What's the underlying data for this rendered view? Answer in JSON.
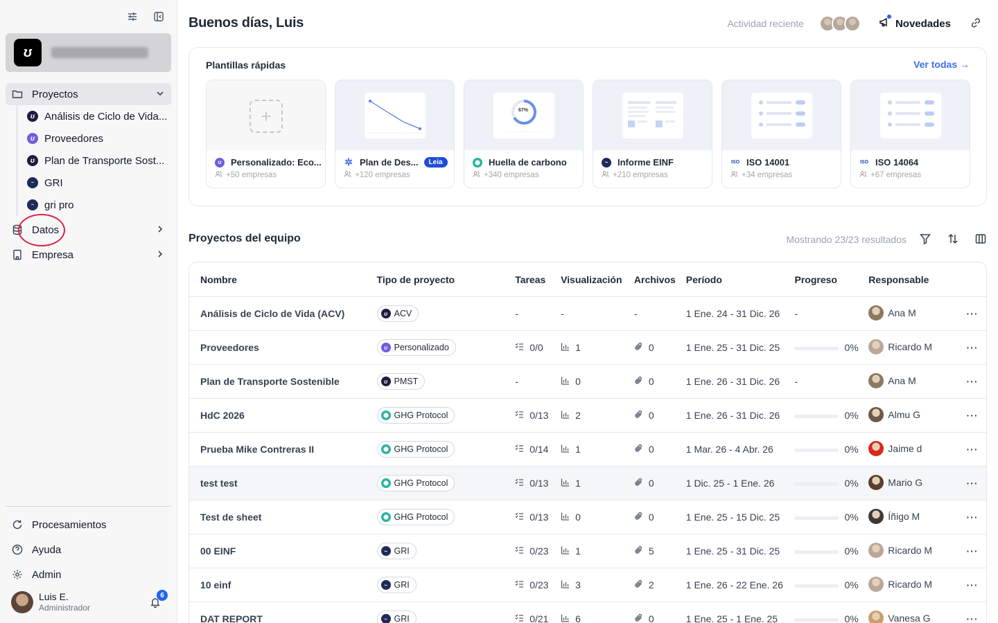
{
  "sidebar": {
    "projects_label": "Proyectos",
    "projects": [
      {
        "label": "Análisis de Ciclo de Vida...",
        "icon": "dark"
      },
      {
        "label": "Proveedores",
        "icon": "purple"
      },
      {
        "label": "Plan de Transporte Sost...",
        "icon": "dark"
      },
      {
        "label": "GRI",
        "icon": "gri"
      },
      {
        "label": "gri pro",
        "icon": "gri"
      }
    ],
    "datos_label": "Datos",
    "empresa_label": "Empresa",
    "bottom": {
      "procesamientos": "Procesamientos",
      "ayuda": "Ayuda",
      "admin": "Admin"
    },
    "user": {
      "name": "Luis E.",
      "role": "Administrador",
      "notifications": "6"
    }
  },
  "header": {
    "greeting": "Buenos días, Luis",
    "recent_activity": "Actividad reciente",
    "news_label": "Novedades"
  },
  "templates": {
    "title": "Plantillas rápidas",
    "see_all": "Ver todas →",
    "cards": [
      {
        "title": "Personalizado: Eco...",
        "companies": "+50 empresas",
        "color": "#6d5de0",
        "badge": ""
      },
      {
        "title": "Plan de Des...",
        "companies": "+120 empresas",
        "color": "#3b6ef0",
        "badge": "Leia"
      },
      {
        "title": "Huella de carbono",
        "companies": "+340 empresas",
        "color": "#2bb3a3",
        "badge": ""
      },
      {
        "title": "Informe EINF",
        "companies": "+210 empresas",
        "color": "#1e2a5a",
        "badge": ""
      },
      {
        "title": "ISO 14001",
        "companies": "+34 empresas",
        "color": "#1e40af",
        "badge": ""
      },
      {
        "title": "ISO 14064",
        "companies": "+67 empresas",
        "color": "#1e40af",
        "badge": ""
      }
    ],
    "donut_label": "67%"
  },
  "projects_section": {
    "title": "Proyectos del equipo",
    "results": "Mostrando 23/23 resultados",
    "columns": [
      "Nombre",
      "Tipo de proyecto",
      "Tareas",
      "Visualización",
      "Archivos",
      "Período",
      "Progreso",
      "Responsable"
    ],
    "rows": [
      {
        "name": "Análisis de Ciclo de Vida (ACV)",
        "type": "ACV",
        "type_icon": "dark",
        "tasks": "-",
        "vis": "-",
        "files": "-",
        "period": "1 Ene. 24 - 31 Dic. 26",
        "progress": "-",
        "progress_value": null,
        "owner": "Ana M",
        "owner_color": "#8a7a62"
      },
      {
        "name": "Proveedores",
        "type": "Personalizado",
        "type_icon": "purple",
        "tasks": "0/0",
        "vis": "1",
        "files": "0",
        "period": "1 Ene. 25 - 31 Dic. 25",
        "progress": "0%",
        "progress_value": 0,
        "owner": "Ricardo M",
        "owner_color": "#b8a89a"
      },
      {
        "name": "Plan de Transporte Sostenible",
        "type": "PMST",
        "type_icon": "dark",
        "tasks": "-",
        "vis": "0",
        "files": "0",
        "period": "1 Ene. 26 - 31 Dic. 26",
        "progress": "-",
        "progress_value": null,
        "owner": "Ana M",
        "owner_color": "#8a7a62"
      },
      {
        "name": "HdC 2026",
        "type": "GHG Protocol",
        "type_icon": "ghg",
        "tasks": "0/13",
        "vis": "2",
        "files": "0",
        "period": "1 Ene. 26 - 31 Dic. 26",
        "progress": "0%",
        "progress_value": 0,
        "owner": "Almu G",
        "owner_color": "#6b5a4a"
      },
      {
        "name": "Prueba Mike Contreras II",
        "type": "GHG Protocol",
        "type_icon": "ghg",
        "tasks": "0/14",
        "vis": "1",
        "files": "0",
        "period": "1 Mar. 26 - 4 Abr. 26",
        "progress": "0%",
        "progress_value": 0,
        "owner": "Jaime d",
        "owner_color": "#d92a1c"
      },
      {
        "name": "test test",
        "type": "GHG Protocol",
        "type_icon": "ghg",
        "tasks": "0/13",
        "vis": "1",
        "files": "0",
        "period": "1 Dic. 25 - 1 Ene. 26",
        "progress": "0%",
        "progress_value": 0,
        "owner": "Mario G",
        "owner_color": "#5a3f2e"
      },
      {
        "name": "Test de sheet",
        "type": "GHG Protocol",
        "type_icon": "ghg",
        "tasks": "0/13",
        "vis": "0",
        "files": "0",
        "period": "1 Ene. 25 - 15 Dic. 25",
        "progress": "0%",
        "progress_value": 0,
        "owner": "Íñigo M",
        "owner_color": "#3a3a3a"
      },
      {
        "name": "00 EINF",
        "type": "GRI",
        "type_icon": "gri",
        "tasks": "0/23",
        "vis": "1",
        "files": "5",
        "period": "1 Ene. 25 - 31 Dic. 25",
        "progress": "0%",
        "progress_value": 0,
        "owner": "Ricardo M",
        "owner_color": "#b8a89a"
      },
      {
        "name": "10 einf",
        "type": "GRI",
        "type_icon": "gri",
        "tasks": "0/23",
        "vis": "3",
        "files": "2",
        "period": "1 Ene. 26 - 22 Ene. 26",
        "progress": "0%",
        "progress_value": 0,
        "owner": "Ricardo M",
        "owner_color": "#b8a89a"
      },
      {
        "name": "DAT REPORT",
        "type": "GRI",
        "type_icon": "gri",
        "tasks": "0/21",
        "vis": "6",
        "files": "0",
        "period": "1 Ene. 25 - 1 Ene. 25",
        "progress": "0%",
        "progress_value": 0,
        "owner": "Vanesa G",
        "owner_color": "#c9a06a"
      }
    ]
  }
}
